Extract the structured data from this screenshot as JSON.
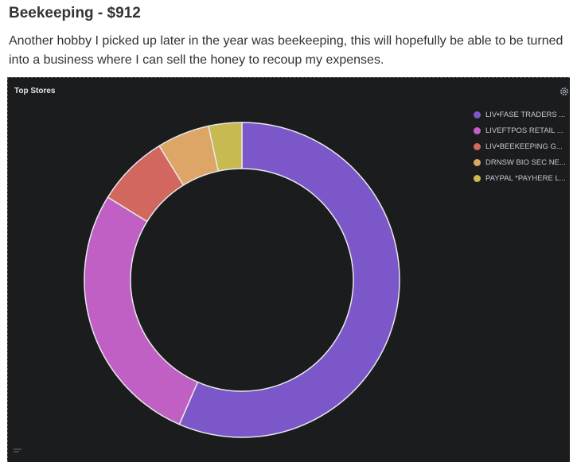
{
  "article": {
    "title": "Beekeeping - $912",
    "body": "Another hobby I picked up later in the year was beekeeping, this will hopefully be able to be turned into a business where I can sell the honey to recoup my expenses."
  },
  "panel": {
    "title": "Top Stores",
    "settings_icon": "gear-icon"
  },
  "chart_data": {
    "type": "pie",
    "style": "donut",
    "title": "Top Stores",
    "legend_placement": "top-right",
    "categories": [
      "LIV•FASE TRADERS ...",
      "LIVEFTPOS RETAIL ...",
      "LIV•BEEKEEPING G...",
      "DRNSW BIO SEC NE...",
      "PAYPAL *PAYHERE L..."
    ],
    "values": [
      56.5,
      27.3,
      7.4,
      5.4,
      3.4
    ],
    "colors": [
      "#7b57c9",
      "#c060c4",
      "#d1675f",
      "#dda666",
      "#c6ba50"
    ]
  }
}
